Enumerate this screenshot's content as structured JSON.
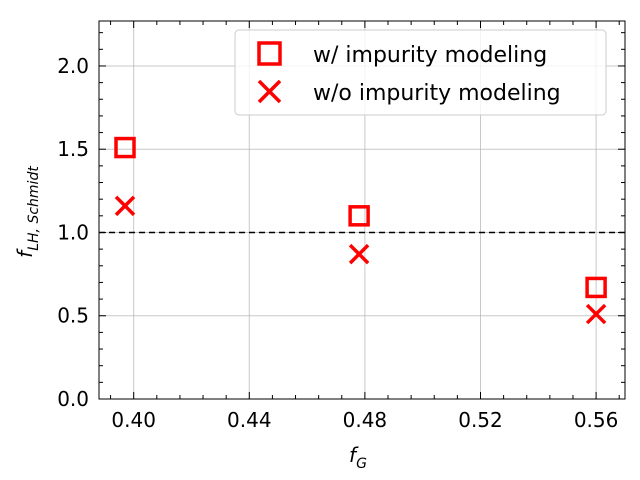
{
  "chart_data": {
    "type": "scatter",
    "xlabel_main": "f",
    "xlabel_sub": "G",
    "ylabel_main": "f",
    "ylabel_sub": "LH, Schmidt",
    "xlim": [
      0.388,
      0.57
    ],
    "ylim": [
      0.0,
      2.27
    ],
    "xticks": [
      0.4,
      0.44,
      0.48,
      0.52,
      0.56
    ],
    "xtick_labels": [
      "0.40",
      "0.44",
      "0.48",
      "0.52",
      "0.56"
    ],
    "yticks": [
      0.0,
      0.5,
      1.0,
      1.5,
      2.0
    ],
    "ytick_labels": [
      "0.0",
      "0.5",
      "1.0",
      "1.5",
      "2.0"
    ],
    "grid": true,
    "reference_line": {
      "y": 1.0,
      "style": "dashed",
      "color": "#000000"
    },
    "legend_position": "top-right",
    "series": [
      {
        "name": "w/ impurity modeling",
        "marker": "square",
        "color": "#ff0000",
        "points": [
          {
            "x": 0.397,
            "y": 1.51
          },
          {
            "x": 0.478,
            "y": 1.1
          },
          {
            "x": 0.56,
            "y": 0.67
          }
        ]
      },
      {
        "name": "w/o impurity modeling",
        "marker": "x",
        "color": "#ff0000",
        "points": [
          {
            "x": 0.397,
            "y": 1.16
          },
          {
            "x": 0.478,
            "y": 0.87
          },
          {
            "x": 0.56,
            "y": 0.51
          }
        ]
      }
    ]
  }
}
